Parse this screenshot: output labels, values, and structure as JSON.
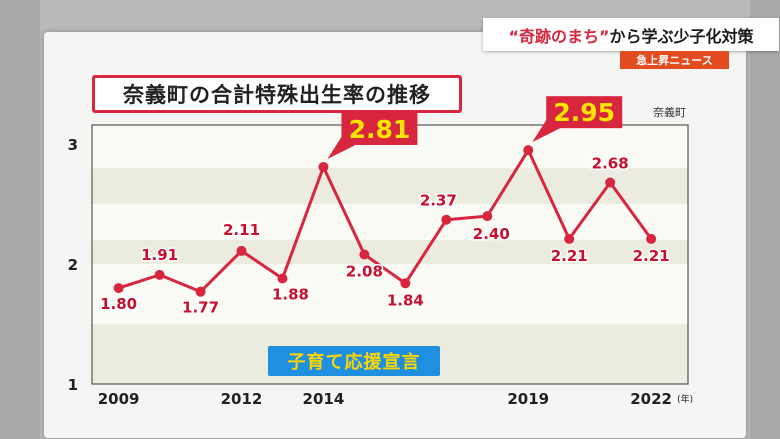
{
  "banner": {
    "part1": "“奇跡のまち”",
    "part2": "から学ぶ少子化対策"
  },
  "program_tag": "急上昇ニュース",
  "chart_data": {
    "type": "line",
    "title": "奈義町の合計特殊出生率の推移",
    "series_label": "奈義町",
    "x": [
      2009,
      2010,
      2011,
      2012,
      2013,
      2014,
      2015,
      2016,
      2017,
      2018,
      2019,
      2020,
      2021,
      2022
    ],
    "values": [
      1.8,
      1.91,
      1.77,
      2.11,
      1.88,
      2.81,
      2.08,
      1.84,
      2.37,
      2.4,
      2.95,
      2.21,
      2.68,
      2.21
    ],
    "data_labels": [
      "1.80",
      "1.91",
      "1.77",
      "2.11",
      "1.88",
      "2.81",
      "2.08",
      "1.84",
      "2.37",
      "2.40",
      "2.95",
      "2.21",
      "2.68",
      "2.21"
    ],
    "highlight_years": [
      2014,
      2019
    ],
    "x_tick_labels": [
      {
        "year": 2009,
        "label": "2009"
      },
      {
        "year": 2012,
        "label": "2012"
      },
      {
        "year": 2014,
        "label": "2014"
      },
      {
        "year": 2019,
        "label": "2019"
      },
      {
        "year": 2022,
        "label": "2022"
      }
    ],
    "x_unit": "(年)",
    "y_ticks": [
      1,
      2,
      3
    ],
    "ylim": [
      1,
      3
    ],
    "grid": true,
    "line_color": "#d7263d",
    "highlight_bg": "#d7263d",
    "highlight_text": "#ffe600",
    "annotation": {
      "text": "子育て応援宣言",
      "year": 2017
    }
  }
}
